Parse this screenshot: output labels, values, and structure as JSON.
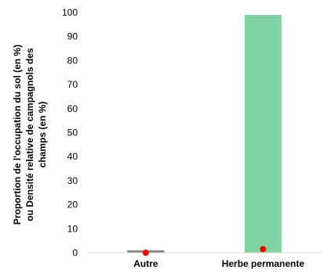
{
  "chart_data": {
    "type": "bar",
    "categories": [
      "Autre",
      "Herbe permanente"
    ],
    "series": [
      {
        "kind": "bar",
        "values": [
          1,
          99
        ],
        "colors": [
          "#808080",
          "#7dd4a0"
        ]
      },
      {
        "kind": "point",
        "values": [
          0,
          1.5
        ],
        "color": "#ff0000"
      }
    ],
    "ylabel_lines": [
      "Proportion de l'occupation du sol (en %)",
      "ou Densité relative de campagnols des",
      "champs (en %)"
    ],
    "ylim": [
      0,
      100
    ],
    "yticks": [
      0,
      10,
      20,
      30,
      40,
      50,
      60,
      70,
      80,
      90,
      100
    ],
    "grid": false,
    "legend": "none"
  }
}
